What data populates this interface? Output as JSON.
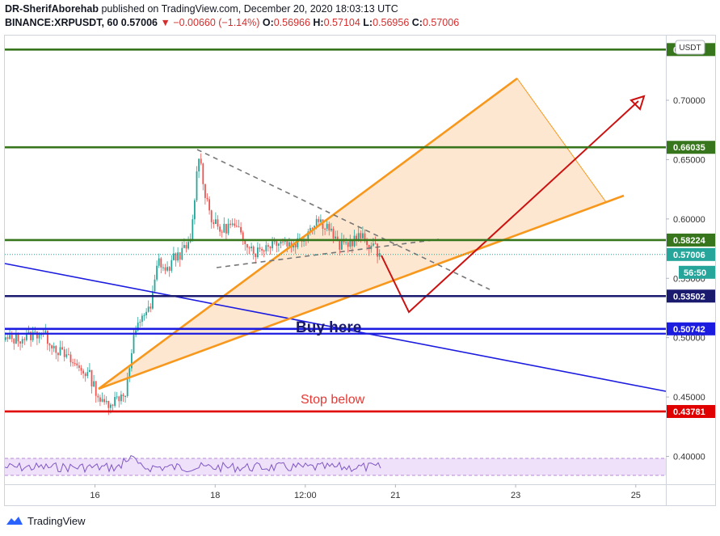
{
  "header": {
    "publisher": "DR-SherifAborehab",
    "published_text": "published on TradingView.com, December 20, 2020 18:03:13 UTC",
    "symbol": "BINANCE:XRPUSDT, 60",
    "price": "0.57006",
    "change": "−0.00660 (−1.14%)",
    "o_label": "O:",
    "o": "0.56966",
    "h_label": "H:",
    "h": "0.57104",
    "l_label": "L:",
    "l": "0.56956",
    "c_label": "C:",
    "c": "0.57006"
  },
  "footer": {
    "brand": "TradingView"
  },
  "colors": {
    "green_level": "#38761d",
    "navy_level": "#1a1a6e",
    "blue_level": "#1c1ce0",
    "red_level": "#e00000",
    "orange": "#f7981d",
    "orange_fill": "#fde3c8",
    "arrow": "#cc1111",
    "candle_up": "#26a69a",
    "candle_down": "#ef5350",
    "current": "#26a69a"
  },
  "chart_data": {
    "type": "candlestick",
    "currency": "USDT",
    "x_ticks": [
      {
        "label": "16",
        "day": 16
      },
      {
        "label": "18",
        "day": 18
      },
      {
        "label": "12:00",
        "day": 19.5
      },
      {
        "label": "21",
        "day": 21
      },
      {
        "label": "23",
        "day": 23
      },
      {
        "label": "25",
        "day": 25
      }
    ],
    "xlim": [
      14.5,
      25.5
    ],
    "ylim": [
      0.3765,
      0.7545
    ],
    "y_ticks": [
      "0.40000",
      "0.45000",
      "0.50000",
      "0.55000",
      "0.60000",
      "0.65000",
      "0.70000"
    ],
    "horizontal_levels": [
      {
        "value": 0.74271,
        "label": "0.74271",
        "kind": "green"
      },
      {
        "value": 0.66035,
        "label": "0.66035",
        "kind": "green"
      },
      {
        "value": 0.58224,
        "label": "0.58224",
        "kind": "green"
      },
      {
        "value": 0.53502,
        "label": "0.53502",
        "kind": "navy"
      },
      {
        "value": 0.50742,
        "label": "0.50742",
        "kind": "blue"
      },
      {
        "value": 0.43781,
        "label": "0.43781",
        "kind": "red"
      }
    ],
    "current_price": {
      "value": 0.57006,
      "label": "0.57006",
      "countdown": "56:50"
    },
    "annotations": {
      "buy": "Buy here",
      "stop": "Stop below"
    }
  }
}
